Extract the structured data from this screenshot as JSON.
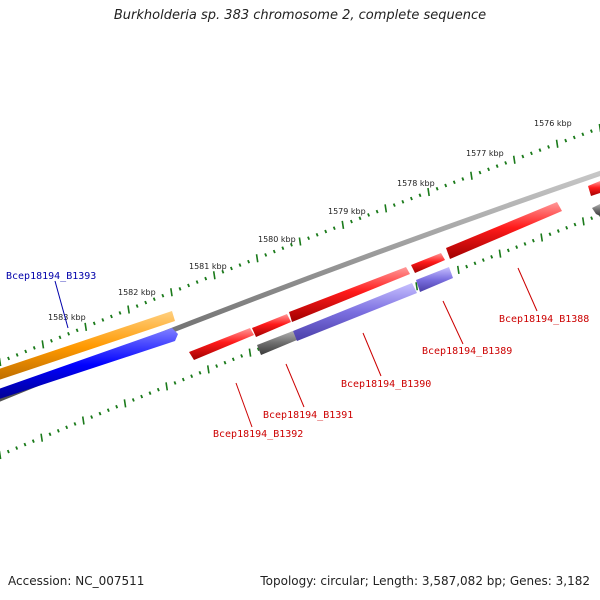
{
  "title": "Burkholderia sp. 383 chromosome 2, complete sequence",
  "footer": {
    "accession": "Accession: NC_007511",
    "summary": "Topology: circular; Length: 3,587,082 bp; Genes: 3,182"
  },
  "colors": {
    "tick": "#1a7a1a",
    "backbone": "#808080",
    "gene_red": "#ff0000",
    "gene_purple": "#7b6fe0",
    "gene_gray": "#6e6e6e",
    "gene_orange": "#ff9900",
    "gene_blue": "#0000ff",
    "label_red": "#cc0000",
    "label_blue": "#0000aa"
  },
  "scale": {
    "labels": [
      "1576 kbp",
      "1577 kbp",
      "1578 kbp",
      "1579 kbp",
      "1580 kbp",
      "1581 kbp",
      "1582 kbp",
      "1583 kbp"
    ]
  },
  "genes": [
    {
      "label": "Bcep18194_B1388",
      "color": "red"
    },
    {
      "label": "Bcep18194_B1389",
      "color": "red"
    },
    {
      "label": "Bcep18194_B1390",
      "color": "red"
    },
    {
      "label": "Bcep18194_B1391",
      "color": "red"
    },
    {
      "label": "Bcep18194_B1392",
      "color": "red"
    },
    {
      "label": "Bcep18194_B1393",
      "color": "blue"
    }
  ]
}
